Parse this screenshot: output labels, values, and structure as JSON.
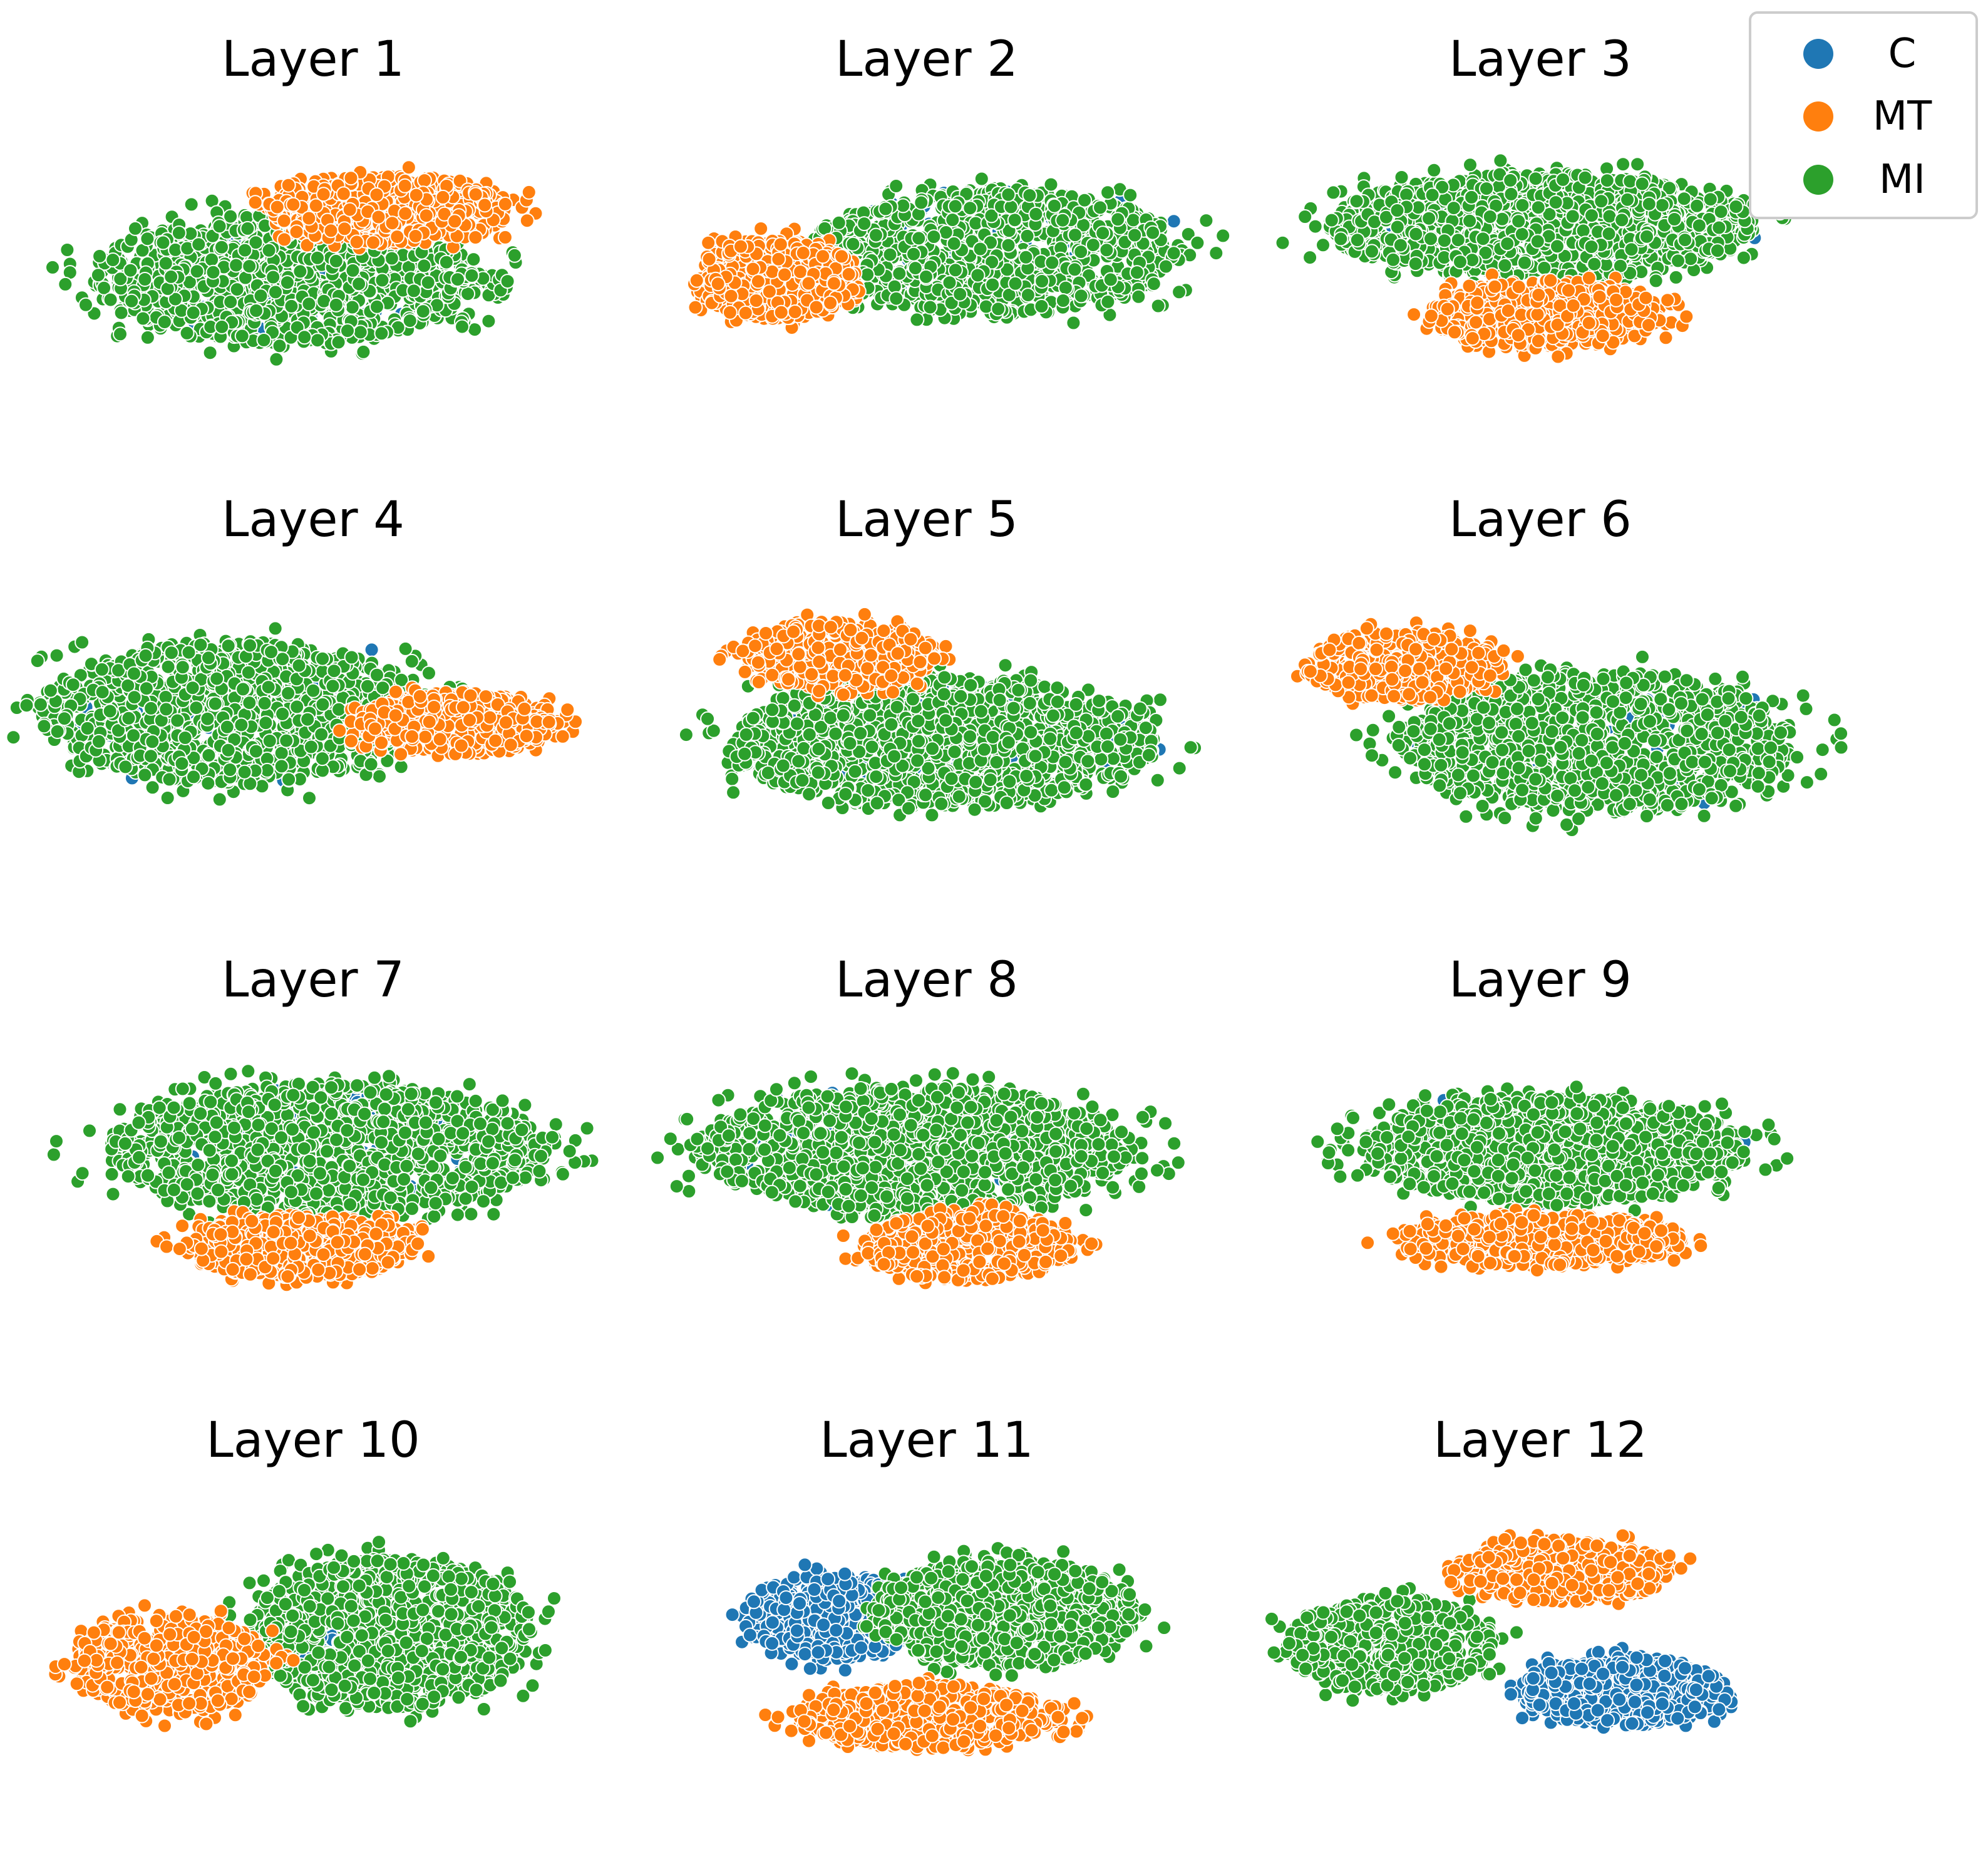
{
  "chart_data": {
    "type": "scatter",
    "title": "",
    "xlabel": "",
    "ylabel": "",
    "axes_visible": false,
    "legend": {
      "placement": "top-right",
      "entries": [
        {
          "name": "C",
          "color": "#1f77b4"
        },
        {
          "name": "MT",
          "color": "#ff7f0e"
        },
        {
          "name": "MI",
          "color": "#2ca02c"
        }
      ]
    },
    "marker_edge_color": "#ffffff",
    "panels": [
      {
        "title": "Layer 1",
        "clusters": [
          {
            "series": "C",
            "center": [
              -0.1,
              -0.12
            ],
            "radius": [
              0.6,
              0.34
            ],
            "count": 120
          },
          {
            "series": "MI",
            "center": [
              -0.1,
              -0.12
            ],
            "radius": [
              0.7,
              0.42
            ],
            "count": 1100
          },
          {
            "series": "MI",
            "center": [
              0.6,
              -0.15
            ],
            "radius": [
              0.12,
              0.08
            ],
            "count": 45
          },
          {
            "series": "MT",
            "center": [
              0.28,
              0.32
            ],
            "radius": [
              0.45,
              0.22
            ],
            "count": 650
          }
        ]
      },
      {
        "title": "Layer 2",
        "clusters": [
          {
            "series": "C",
            "center": [
              0.2,
              0.1
            ],
            "radius": [
              0.6,
              0.34
            ],
            "count": 150
          },
          {
            "series": "MI",
            "center": [
              0.25,
              0.05
            ],
            "radius": [
              0.68,
              0.4
            ],
            "count": 1100
          },
          {
            "series": "MT",
            "center": [
              -0.55,
              -0.12
            ],
            "radius": [
              0.3,
              0.26
            ],
            "count": 500
          }
        ]
      },
      {
        "title": "Layer 3",
        "clusters": [
          {
            "series": "C",
            "center": [
              0.0,
              0.22
            ],
            "radius": [
              0.65,
              0.28
            ],
            "count": 100
          },
          {
            "series": "MI",
            "center": [
              0.0,
              0.22
            ],
            "radius": [
              0.78,
              0.34
            ],
            "count": 1250
          },
          {
            "series": "MT",
            "center": [
              0.02,
              -0.35
            ],
            "radius": [
              0.42,
              0.22
            ],
            "count": 600
          }
        ]
      },
      {
        "title": "Layer 4",
        "clusters": [
          {
            "series": "C",
            "center": [
              -0.25,
              0.05
            ],
            "radius": [
              0.62,
              0.4
            ],
            "count": 100
          },
          {
            "series": "MI",
            "center": [
              -0.28,
              0.05
            ],
            "radius": [
              0.72,
              0.46
            ],
            "count": 1100
          },
          {
            "series": "MT",
            "center": [
              0.52,
              -0.02
            ],
            "radius": [
              0.35,
              0.2
            ],
            "count": 550
          }
        ]
      },
      {
        "title": "Layer 5",
        "clusters": [
          {
            "series": "C",
            "center": [
              0.05,
              -0.12
            ],
            "radius": [
              0.7,
              0.36
            ],
            "count": 120
          },
          {
            "series": "MI",
            "center": [
              0.05,
              -0.14
            ],
            "radius": [
              0.78,
              0.42
            ],
            "count": 1200
          },
          {
            "series": "MT",
            "center": [
              -0.32,
              0.42
            ],
            "radius": [
              0.35,
              0.22
            ],
            "count": 500
          }
        ]
      },
      {
        "title": "Layer 6",
        "clusters": [
          {
            "series": "C",
            "center": [
              0.2,
              -0.12
            ],
            "radius": [
              0.65,
              0.38
            ],
            "count": 120
          },
          {
            "series": "MI",
            "center": [
              0.2,
              -0.14
            ],
            "radius": [
              0.72,
              0.45
            ],
            "count": 1150
          },
          {
            "series": "MT",
            "center": [
              -0.5,
              0.35
            ],
            "radius": [
              0.35,
              0.22
            ],
            "count": 500
          }
        ]
      },
      {
        "title": "Layer 7",
        "clusters": [
          {
            "series": "C",
            "center": [
              0.05,
              0.2
            ],
            "radius": [
              0.7,
              0.36
            ],
            "count": 100
          },
          {
            "series": "MI",
            "center": [
              0.05,
              0.2
            ],
            "radius": [
              0.8,
              0.42
            ],
            "count": 1300
          },
          {
            "series": "MT",
            "center": [
              -0.05,
              -0.42
            ],
            "radius": [
              0.42,
              0.2
            ],
            "count": 550
          }
        ]
      },
      {
        "title": "Layer 8",
        "clusters": [
          {
            "series": "C",
            "center": [
              -0.05,
              0.2
            ],
            "radius": [
              0.68,
              0.34
            ],
            "count": 120
          },
          {
            "series": "MI",
            "center": [
              -0.05,
              0.2
            ],
            "radius": [
              0.8,
              0.4
            ],
            "count": 1250
          },
          {
            "series": "MT",
            "center": [
              0.15,
              -0.42
            ],
            "radius": [
              0.38,
              0.22
            ],
            "count": 550
          }
        ]
      },
      {
        "title": "Layer 9",
        "clusters": [
          {
            "series": "C",
            "center": [
              0.05,
              0.2
            ],
            "radius": [
              0.6,
              0.3
            ],
            "count": 150
          },
          {
            "series": "MI",
            "center": [
              0.05,
              0.2
            ],
            "radius": [
              0.7,
              0.34
            ],
            "count": 1150
          },
          {
            "series": "MT",
            "center": [
              0.0,
              -0.38
            ],
            "radius": [
              0.52,
              0.17
            ],
            "count": 550
          }
        ]
      },
      {
        "title": "Layer 10",
        "clusters": [
          {
            "series": "C",
            "center": [
              0.2,
              -0.08
            ],
            "radius": [
              0.25,
              0.14
            ],
            "count": 120
          },
          {
            "series": "MI",
            "center": [
              0.28,
              0.05
            ],
            "radius": [
              0.52,
              0.48
            ],
            "count": 1100
          },
          {
            "series": "MT",
            "center": [
              -0.52,
              -0.15
            ],
            "radius": [
              0.36,
              0.32
            ],
            "count": 550
          }
        ]
      },
      {
        "title": "Layer 11",
        "clusters": [
          {
            "series": "C",
            "center": [
              -0.35,
              0.15
            ],
            "radius": [
              0.32,
              0.28
            ],
            "count": 450
          },
          {
            "series": "MI",
            "center": [
              0.28,
              0.18
            ],
            "radius": [
              0.48,
              0.34
            ],
            "count": 900
          },
          {
            "series": "MT",
            "center": [
              0.0,
              -0.48
            ],
            "radius": [
              0.48,
              0.2
            ],
            "count": 600
          }
        ]
      },
      {
        "title": "Layer 12",
        "clusters": [
          {
            "series": "MI",
            "center": [
              -0.55,
              -0.02
            ],
            "radius": [
              0.38,
              0.3
            ],
            "count": 550
          },
          {
            "series": "MT",
            "center": [
              0.1,
              0.45
            ],
            "radius": [
              0.38,
              0.2
            ],
            "count": 550
          },
          {
            "series": "C",
            "center": [
              0.3,
              -0.32
            ],
            "radius": [
              0.38,
              0.22
            ],
            "count": 600
          }
        ]
      }
    ]
  }
}
